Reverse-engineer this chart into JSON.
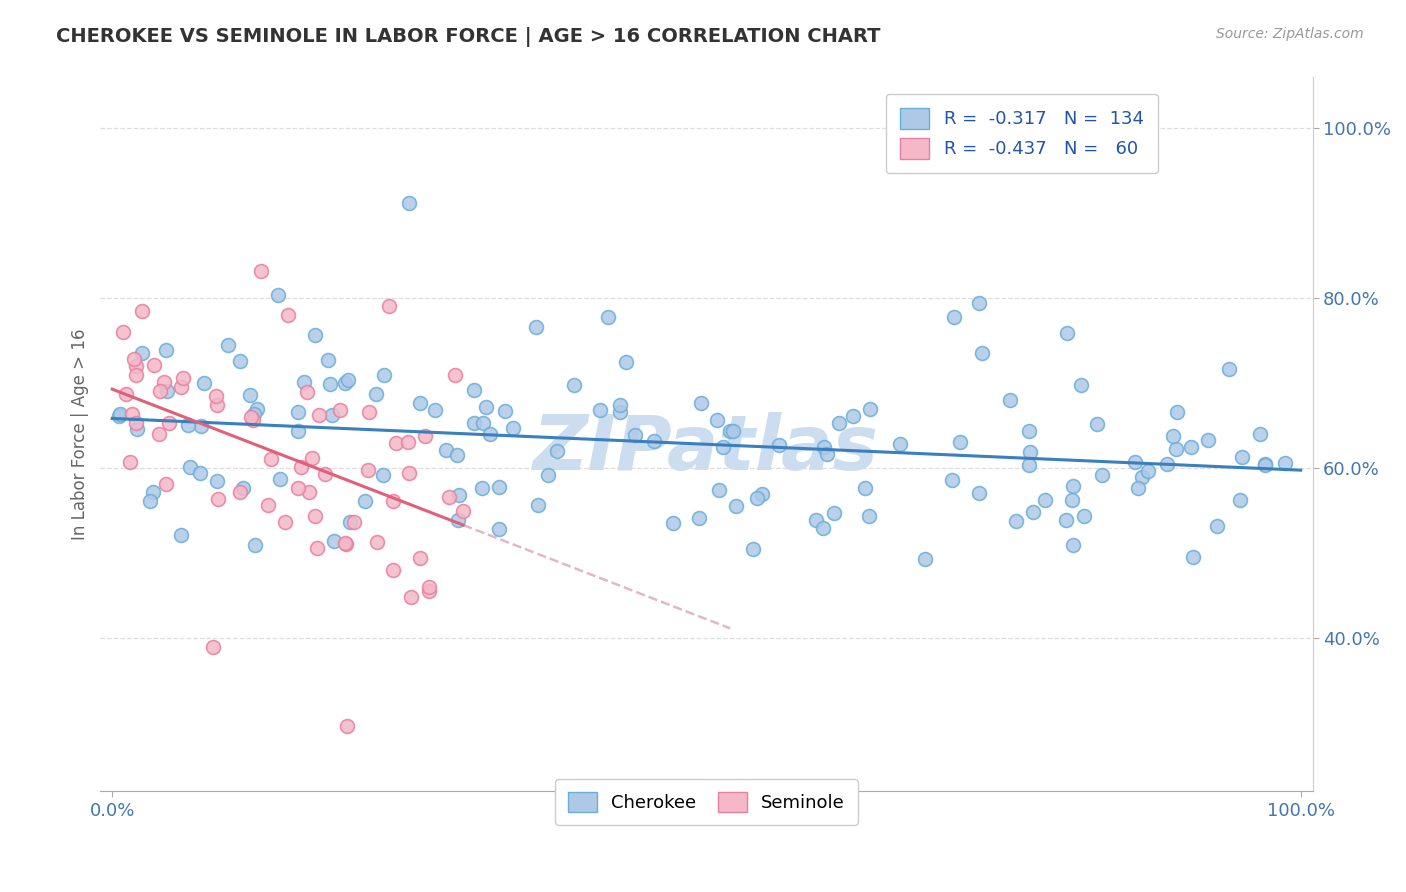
{
  "title": "CHEROKEE VS SEMINOLE IN LABOR FORCE | AGE > 16 CORRELATION CHART",
  "source_text": "Source: ZipAtlas.com",
  "ylabel": "In Labor Force | Age > 16",
  "xlim": [
    -0.01,
    1.01
  ],
  "ylim": [
    0.22,
    1.06
  ],
  "yticks": [
    0.4,
    0.6,
    0.8,
    1.0
  ],
  "ytick_labels": [
    "40.0%",
    "60.0%",
    "80.0%",
    "100.0%"
  ],
  "xticks": [
    0.0,
    1.0
  ],
  "xtick_labels": [
    "0.0%",
    "100.0%"
  ],
  "cherokee_color": "#aec9e8",
  "cherokee_edge": "#6baed6",
  "seminole_color": "#f4b8c8",
  "seminole_edge": "#e87fa0",
  "trend_cherokee_color": "#3a7fbf",
  "trend_seminole_color": "#e0607a",
  "trend_dashed_color": "#e0b8c8",
  "cherokee_R": -0.317,
  "cherokee_N": 134,
  "seminole_R": -0.437,
  "seminole_N": 60,
  "legend_label_1": "Cherokee",
  "legend_label_2": "Seminole",
  "background_color": "#ffffff",
  "grid_color": "#dddddd",
  "title_color": "#333333",
  "label_color": "#4477aa",
  "watermark_text": "ZIPatlas",
  "watermark_color": "#ccddf0",
  "cherokee_seed": 42,
  "seminole_seed": 17,
  "marker_size": 100
}
